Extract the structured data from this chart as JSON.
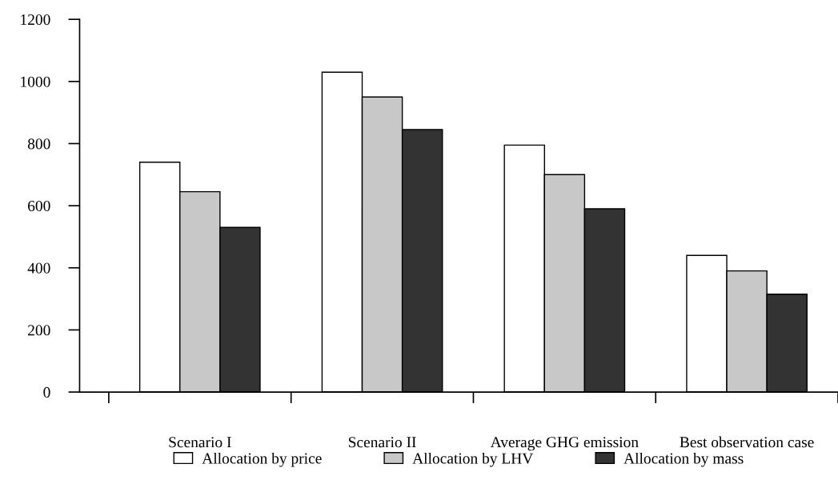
{
  "chart_data": {
    "type": "bar",
    "categories": [
      "Scenario I",
      "Scenario II",
      "Average GHG emission",
      "Best observation case"
    ],
    "series": [
      {
        "name": "Allocation by price",
        "color": "#ffffff",
        "values": [
          740,
          1030,
          795,
          440
        ]
      },
      {
        "name": "Allocation by LHV",
        "color": "#c8c8c8",
        "values": [
          645,
          950,
          700,
          390
        ]
      },
      {
        "name": "Allocation by mass",
        "color": "#333333",
        "values": [
          530,
          845,
          590,
          315
        ]
      }
    ],
    "ylim": [
      0,
      1200
    ],
    "yticks": [
      0,
      200,
      400,
      600,
      800,
      1000,
      1200
    ],
    "grid": false,
    "legend": "bottom"
  }
}
